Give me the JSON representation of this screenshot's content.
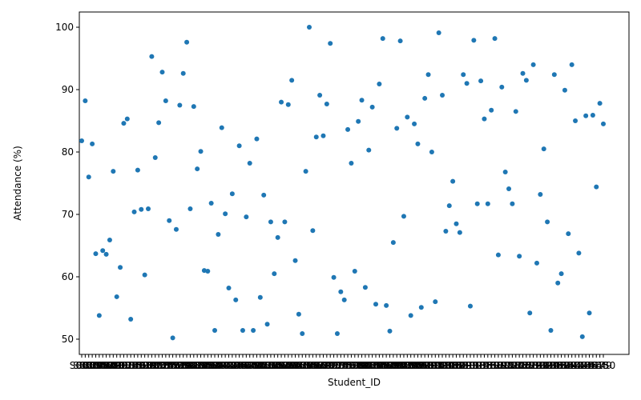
{
  "chart_data": {
    "type": "scatter",
    "xlabel": "Student_ID",
    "ylabel": "Attendance (%)",
    "color": "#1f77b4",
    "categories": [
      "S001",
      "S002",
      "S003",
      "S004",
      "S005",
      "S006",
      "S007",
      "S008",
      "S009",
      "S010",
      "S011",
      "S012",
      "S013",
      "S014",
      "S015",
      "S016",
      "S017",
      "S018",
      "S019",
      "S020",
      "S021",
      "S022",
      "S023",
      "S024",
      "S025",
      "S026",
      "S027",
      "S028",
      "S029",
      "S030",
      "S031",
      "S032",
      "S033",
      "S034",
      "S035",
      "S036",
      "S037",
      "S038",
      "S039",
      "S040",
      "S041",
      "S042",
      "S043",
      "S044",
      "S045",
      "S046",
      "S047",
      "S048",
      "S049",
      "S050",
      "S051",
      "S052",
      "S053",
      "S054",
      "S055",
      "S056",
      "S057",
      "S058",
      "S059",
      "S060",
      "S061",
      "S062",
      "S063",
      "S064",
      "S065",
      "S066",
      "S067",
      "S068",
      "S069",
      "S070",
      "S071",
      "S072",
      "S073",
      "S074",
      "S075",
      "S076",
      "S077",
      "S078",
      "S079",
      "S080",
      "S081",
      "S082",
      "S083",
      "S084",
      "S085",
      "S086",
      "S087",
      "S088",
      "S089",
      "S090",
      "S091",
      "S092",
      "S093",
      "S094",
      "S095",
      "S096",
      "S097",
      "S098",
      "S099",
      "S100",
      "S101",
      "S102",
      "S103",
      "S104",
      "S105",
      "S106",
      "S107",
      "S108",
      "S109",
      "S110",
      "S111",
      "S112",
      "S113",
      "S114",
      "S115",
      "S116",
      "S117",
      "S118",
      "S119",
      "S120",
      "S121",
      "S122",
      "S123",
      "S124",
      "S125",
      "S126",
      "S127",
      "S128",
      "S129",
      "S130",
      "S131",
      "S132",
      "S133",
      "S134",
      "S135",
      "S136",
      "S137",
      "S138",
      "S139",
      "S140",
      "S141",
      "S142",
      "S143",
      "S144",
      "S145",
      "S146",
      "S147",
      "S148",
      "S149",
      "S150"
    ],
    "values": [
      81.8,
      88.2,
      76.0,
      81.3,
      63.7,
      53.8,
      64.2,
      63.6,
      65.9,
      76.9,
      56.8,
      61.5,
      84.6,
      85.3,
      53.2,
      70.4,
      77.1,
      70.8,
      60.3,
      70.9,
      95.3,
      79.1,
      84.7,
      92.8,
      88.2,
      69.0,
      50.2,
      67.6,
      87.5,
      92.6,
      97.6,
      70.9,
      87.3,
      77.3,
      80.1,
      61.0,
      60.9,
      71.8,
      51.4,
      66.8,
      83.9,
      70.1,
      58.2,
      73.3,
      56.3,
      81.0,
      51.4,
      69.6,
      78.2,
      51.4,
      82.1,
      56.7,
      73.1,
      52.4,
      68.8,
      60.5,
      66.3,
      88.0,
      68.8,
      87.6,
      91.5,
      62.6,
      54.0,
      50.9,
      76.9,
      100.0,
      67.4,
      82.4,
      89.1,
      82.6,
      87.7,
      97.4,
      59.9,
      50.9,
      57.6,
      56.3,
      83.6,
      78.2,
      60.9,
      84.9,
      88.3,
      58.3,
      80.3,
      87.2,
      55.6,
      90.9,
      98.2,
      55.4,
      51.3,
      65.5,
      83.8,
      97.8,
      69.7,
      85.6,
      53.8,
      84.5,
      81.3,
      55.1,
      88.6,
      92.4,
      80.0,
      56.0,
      99.1,
      89.1,
      67.3,
      71.4,
      75.3,
      68.5,
      67.1,
      92.4,
      91.0,
      55.3,
      97.9,
      71.7,
      91.4,
      85.3,
      71.7,
      86.7,
      98.2,
      63.5,
      90.4,
      76.8,
      74.1,
      71.7,
      86.5,
      63.3,
      92.6,
      91.5,
      54.2,
      94.0,
      62.2,
      73.2,
      80.5,
      68.8,
      51.4,
      92.4,
      59.0,
      60.5,
      89.9,
      66.9,
      94.0,
      85.0,
      63.8,
      50.4,
      85.8,
      54.2,
      85.9,
      74.4,
      87.8,
      84.5
    ],
    "ylim": [
      47.56,
      102.44
    ],
    "yticks": [
      50,
      60,
      70,
      80,
      90,
      100
    ]
  }
}
